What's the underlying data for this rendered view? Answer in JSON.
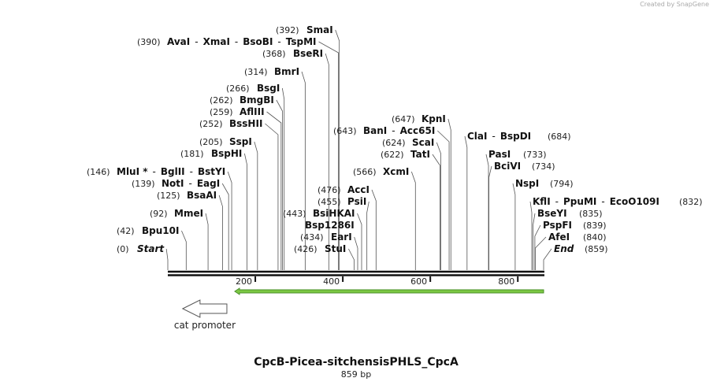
{
  "header": {
    "credit": "Created by SnapGene"
  },
  "title": "CpcB-Picea-sitchensisPHLS_CpcA",
  "length": {
    "value": 859,
    "label": "859 bp"
  },
  "separator": "-",
  "ticks": [
    200,
    400,
    600,
    800
  ],
  "enzymes": [
    {
      "names": [
        "Start"
      ],
      "position": {
        "value": 0,
        "label": "(0)"
      }
    },
    {
      "names": [
        "Bpu10I"
      ],
      "position": {
        "value": 42,
        "label": "(42)"
      }
    },
    {
      "names": [
        "MmeI"
      ],
      "position": {
        "value": 92,
        "label": "(92)"
      }
    },
    {
      "names": [
        "BsaAI"
      ],
      "position": {
        "value": 125,
        "label": "(125)"
      }
    },
    {
      "names": [
        "NotI",
        "EagI"
      ],
      "position": {
        "value": 139,
        "label": "(139)"
      }
    },
    {
      "names": [
        "MluI *",
        "BglII",
        "BstYI"
      ],
      "position": {
        "value": 146,
        "label": "(146)"
      }
    },
    {
      "names": [
        "BspHI"
      ],
      "position": {
        "value": 181,
        "label": "(181)"
      }
    },
    {
      "names": [
        "SspI"
      ],
      "position": {
        "value": 205,
        "label": "(205)"
      }
    },
    {
      "names": [
        "BssHII"
      ],
      "position": {
        "value": 252,
        "label": "(252)"
      }
    },
    {
      "names": [
        "AflIII"
      ],
      "position": {
        "value": 259,
        "label": "(259)"
      }
    },
    {
      "names": [
        "BmgBI"
      ],
      "position": {
        "value": 262,
        "label": "(262)"
      }
    },
    {
      "names": [
        "BsgI"
      ],
      "position": {
        "value": 266,
        "label": "(266)"
      }
    },
    {
      "names": [
        "BmrI"
      ],
      "position": {
        "value": 314,
        "label": "(314)"
      }
    },
    {
      "names": [
        "BseRI"
      ],
      "position": {
        "value": 368,
        "label": "(368)"
      }
    },
    {
      "names": [
        "AvaI",
        "XmaI",
        "BsoBI",
        "TspMI"
      ],
      "position": {
        "value": 390,
        "label": "(390)"
      }
    },
    {
      "names": [
        "SmaI"
      ],
      "position": {
        "value": 392,
        "label": "(392)"
      }
    },
    {
      "names": [
        "StuI"
      ],
      "position": {
        "value": 426,
        "label": "(426)"
      }
    },
    {
      "names": [
        "EarI"
      ],
      "position": {
        "value": 434,
        "label": "(434)"
      }
    },
    {
      "names": [
        "Bsp1286I"
      ]
    },
    {
      "names": [
        "BsiHKAI"
      ],
      "position": {
        "value": 443,
        "label": "(443)"
      }
    },
    {
      "names": [
        "PsiI"
      ],
      "position": {
        "value": 455,
        "label": "(455)"
      }
    },
    {
      "names": [
        "AccI"
      ],
      "position": {
        "value": 476,
        "label": "(476)"
      }
    },
    {
      "names": [
        "XcmI"
      ],
      "position": {
        "value": 566,
        "label": "(566)"
      }
    },
    {
      "names": [
        "TatI"
      ],
      "position": {
        "value": 622,
        "label": "(622)"
      }
    },
    {
      "names": [
        "ScaI"
      ],
      "position": {
        "value": 624,
        "label": "(624)"
      }
    },
    {
      "names": [
        "BanI",
        "Acc65I"
      ],
      "position": {
        "value": 643,
        "label": "(643)"
      }
    },
    {
      "names": [
        "KpnI"
      ],
      "position": {
        "value": 647,
        "label": "(647)"
      }
    },
    {
      "names": [
        "ClaI",
        "BspDI"
      ],
      "position": {
        "value": 684,
        "label": "(684)"
      }
    },
    {
      "names": [
        "PasI"
      ],
      "position": {
        "value": 733,
        "label": "(733)"
      }
    },
    {
      "names": [
        "BciVI"
      ],
      "position": {
        "value": 734,
        "label": "(734)"
      }
    },
    {
      "names": [
        "NspI"
      ],
      "position": {
        "value": 794,
        "label": "(794)"
      }
    },
    {
      "names": [
        "KflI",
        "PpuMI",
        "EcoO109I"
      ],
      "position": {
        "value": 832,
        "label": "(832)"
      }
    },
    {
      "names": [
        "BseYI"
      ],
      "position": {
        "value": 835,
        "label": "(835)"
      }
    },
    {
      "names": [
        "PspFI"
      ],
      "position": {
        "value": 839,
        "label": "(839)"
      }
    },
    {
      "names": [
        "AfeI"
      ],
      "position": {
        "value": 840,
        "label": "(840)"
      }
    },
    {
      "names": [
        "End"
      ],
      "position": {
        "value": 859,
        "label": "(859)"
      }
    }
  ],
  "features": [
    {
      "name": "cat promoter",
      "start": 34,
      "end": 135,
      "color": "#ffffff"
    },
    {
      "start": 153,
      "end": 859,
      "color": "#7cc843"
    }
  ]
}
